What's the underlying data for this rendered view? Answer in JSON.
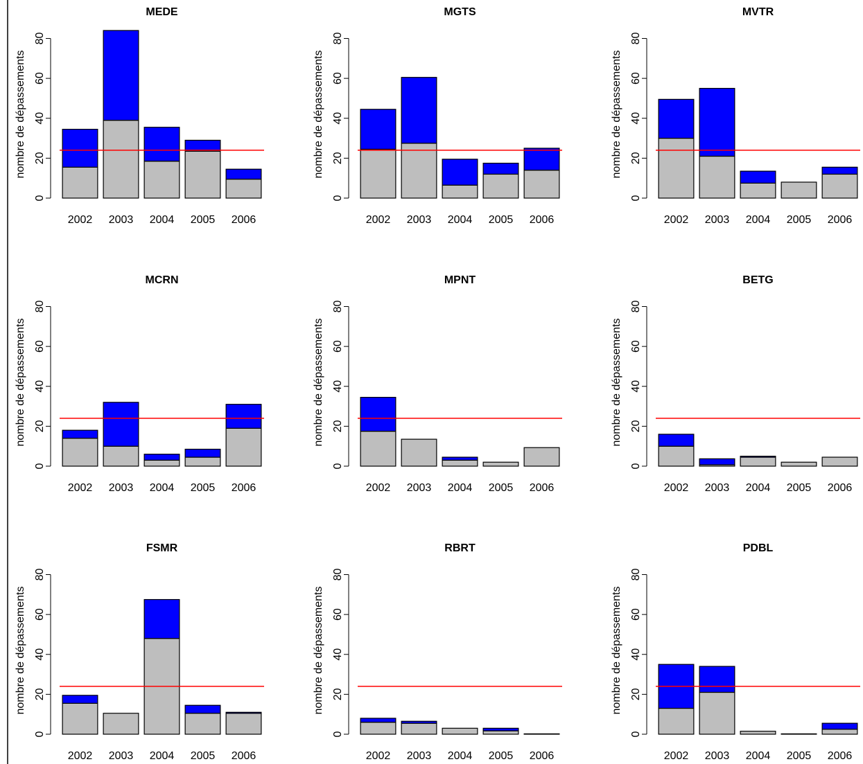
{
  "chart_data": [
    {
      "type": "bar",
      "stacked": true,
      "title": "MEDE",
      "ylabel": "nombre de dépassements",
      "categories": [
        "2002",
        "2003",
        "2004",
        "2005",
        "2006"
      ],
      "series": [
        {
          "color": "#bebebe",
          "values": [
            15.5,
            39,
            18.5,
            23.5,
            9.5
          ]
        },
        {
          "color": "#0000ff",
          "values": [
            19,
            45,
            17,
            5.5,
            5
          ]
        }
      ],
      "reference_line": {
        "value": 24,
        "color": "#ff0000"
      },
      "ylim": [
        0,
        84
      ],
      "yticks": [
        0,
        20,
        40,
        60,
        80
      ]
    },
    {
      "type": "bar",
      "stacked": true,
      "title": "MGTS",
      "ylabel": "nombre de dépassements",
      "categories": [
        "2002",
        "2003",
        "2004",
        "2005",
        "2006"
      ],
      "series": [
        {
          "color": "#bebebe",
          "values": [
            24.5,
            27.5,
            6.5,
            12,
            14
          ]
        },
        {
          "color": "#0000ff",
          "values": [
            20,
            33,
            13,
            5.5,
            11
          ]
        }
      ],
      "reference_line": {
        "value": 24,
        "color": "#ff0000"
      },
      "ylim": [
        0,
        84
      ],
      "yticks": [
        0,
        20,
        40,
        60,
        80
      ]
    },
    {
      "type": "bar",
      "stacked": true,
      "title": "MVTR",
      "ylabel": "nombre de dépassements",
      "categories": [
        "2002",
        "2003",
        "2004",
        "2005",
        "2006"
      ],
      "series": [
        {
          "color": "#bebebe",
          "values": [
            30,
            21,
            7.5,
            8,
            12
          ]
        },
        {
          "color": "#0000ff",
          "values": [
            19.5,
            34,
            6,
            0,
            3.5
          ]
        }
      ],
      "reference_line": {
        "value": 24,
        "color": "#ff0000"
      },
      "ylim": [
        0,
        84
      ],
      "yticks": [
        0,
        20,
        40,
        60,
        80
      ]
    },
    {
      "type": "bar",
      "stacked": true,
      "title": "MCRN",
      "ylabel": "nombre de dépassements",
      "categories": [
        "2002",
        "2003",
        "2004",
        "2005",
        "2006"
      ],
      "series": [
        {
          "color": "#bebebe",
          "values": [
            14,
            10,
            3,
            4.5,
            19
          ]
        },
        {
          "color": "#0000ff",
          "values": [
            4,
            22,
            3,
            4,
            12
          ]
        }
      ],
      "reference_line": {
        "value": 24,
        "color": "#ff0000"
      },
      "ylim": [
        0,
        84
      ],
      "yticks": [
        0,
        20,
        40,
        60,
        80
      ]
    },
    {
      "type": "bar",
      "stacked": true,
      "title": "MPNT",
      "ylabel": "nombre de dépassements",
      "categories": [
        "2002",
        "2003",
        "2004",
        "2005",
        "2006"
      ],
      "series": [
        {
          "color": "#bebebe",
          "values": [
            17.5,
            13.5,
            3,
            2,
            9.3
          ]
        },
        {
          "color": "#0000ff",
          "values": [
            17,
            0,
            1.5,
            0,
            0
          ]
        }
      ],
      "reference_line": {
        "value": 24,
        "color": "#ff0000"
      },
      "ylim": [
        0,
        84
      ],
      "yticks": [
        0,
        20,
        40,
        60,
        80
      ]
    },
    {
      "type": "bar",
      "stacked": true,
      "title": "BETG",
      "ylabel": "nombre de dépassements",
      "categories": [
        "2002",
        "2003",
        "2004",
        "2005",
        "2006"
      ],
      "series": [
        {
          "color": "#bebebe",
          "values": [
            10,
            0.7,
            4.5,
            2,
            4.5
          ]
        },
        {
          "color": "#0000ff",
          "values": [
            6,
            3,
            0.5,
            0,
            0
          ]
        }
      ],
      "reference_line": {
        "value": 24,
        "color": "#ff0000"
      },
      "ylim": [
        0,
        84
      ],
      "yticks": [
        0,
        20,
        40,
        60,
        80
      ]
    },
    {
      "type": "bar",
      "stacked": true,
      "title": "FSMR",
      "ylabel": "nombre de dépassements",
      "categories": [
        "2002",
        "2003",
        "2004",
        "2005",
        "2006"
      ],
      "series": [
        {
          "color": "#bebebe",
          "values": [
            15.5,
            10.5,
            48,
            10.5,
            10.5
          ]
        },
        {
          "color": "#0000ff",
          "values": [
            4,
            0,
            19.5,
            4,
            0.5
          ]
        }
      ],
      "reference_line": {
        "value": 24,
        "color": "#ff0000"
      },
      "ylim": [
        0,
        84
      ],
      "yticks": [
        0,
        20,
        40,
        60,
        80
      ]
    },
    {
      "type": "bar",
      "stacked": true,
      "title": "RBRT",
      "ylabel": "nombre de dépassements",
      "categories": [
        "2002",
        "2003",
        "2004",
        "2005",
        "2006"
      ],
      "series": [
        {
          "color": "#bebebe",
          "values": [
            6,
            5.5,
            3,
            1.7,
            0.2
          ]
        },
        {
          "color": "#0000ff",
          "values": [
            2,
            1,
            0,
            1.3,
            0
          ]
        }
      ],
      "reference_line": {
        "value": 24,
        "color": "#ff0000"
      },
      "ylim": [
        0,
        84
      ],
      "yticks": [
        0,
        20,
        40,
        60,
        80
      ]
    },
    {
      "type": "bar",
      "stacked": true,
      "title": "PDBL",
      "ylabel": "nombre de dépassements",
      "categories": [
        "2002",
        "2003",
        "2004",
        "2005",
        "2006"
      ],
      "series": [
        {
          "color": "#bebebe",
          "values": [
            13,
            21,
            1.5,
            0.2,
            2.5
          ]
        },
        {
          "color": "#0000ff",
          "values": [
            22,
            13,
            0,
            0,
            3
          ]
        }
      ],
      "reference_line": {
        "value": 24,
        "color": "#ff0000"
      },
      "ylim": [
        0,
        84
      ],
      "yticks": [
        0,
        20,
        40,
        60,
        80
      ]
    }
  ]
}
